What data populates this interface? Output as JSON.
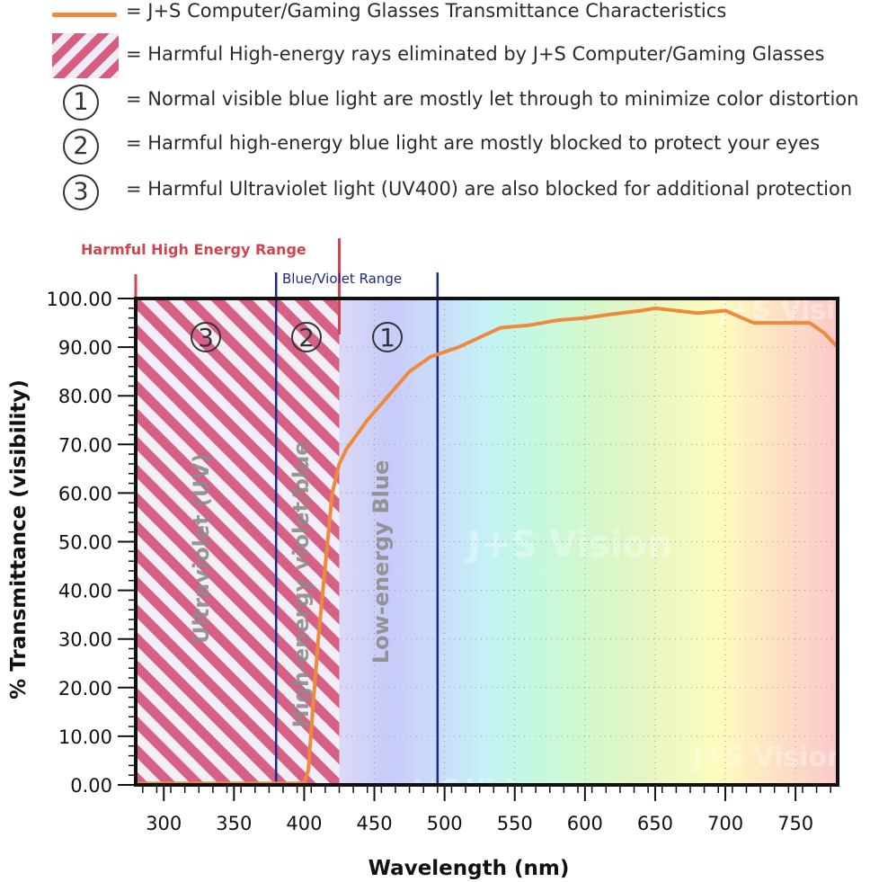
{
  "legend": {
    "items": [
      {
        "text": "= J+S Computer/Gaming Glasses Transmittance Characteristics",
        "swatch": "orange-line"
      },
      {
        "text": "= Harmful High-energy rays eliminated by J+S Computer/Gaming Glasses",
        "swatch": "hatch"
      },
      {
        "text": "= Normal visible blue light are mostly let through to minimize color distortion",
        "swatch": "circle",
        "symbol": "1"
      },
      {
        "text": "= Harmful high-energy blue light are mostly blocked to protect your eyes",
        "swatch": "circle",
        "symbol": "2"
      },
      {
        "text": "= Harmful Ultraviolet light (UV400) are also blocked for additional protection",
        "swatch": "circle",
        "symbol": "3"
      }
    ]
  },
  "colors": {
    "curve": "#ee8a3c",
    "hatch": "#d65d80",
    "harmful_range": "#d0454f",
    "blue_range": "#1a2a8a",
    "frame": "#111111"
  },
  "chart_data": {
    "type": "line",
    "title": "",
    "xlabel": "Wavelength (nm)",
    "ylabel": "% Transmittance (visibility)",
    "xlim": [
      280,
      780
    ],
    "ylim": [
      0,
      100
    ],
    "xticks": [
      300,
      350,
      400,
      450,
      500,
      550,
      600,
      650,
      700,
      750
    ],
    "yticks": [
      "0.00",
      "10.00",
      "20.00",
      "30.00",
      "40.00",
      "50.00",
      "60.00",
      "70.00",
      "80.00",
      "90.00",
      "100.00"
    ],
    "series": [
      {
        "x": [
          280,
          300,
          350,
          395,
          400,
          403,
          406,
          410,
          415,
          420,
          425,
          430,
          435,
          445,
          460,
          475,
          490,
          500,
          510,
          525,
          540,
          560,
          580,
          600,
          620,
          640,
          650,
          665,
          680,
          700,
          720,
          740,
          760,
          770,
          780
        ],
        "y": [
          0.3,
          0.3,
          0.3,
          0.3,
          0.5,
          3,
          15,
          30,
          45,
          60,
          66,
          69,
          71,
          75,
          80,
          85,
          88,
          89,
          90,
          92,
          94,
          94.5,
          95.5,
          96,
          96.8,
          97.5,
          98,
          97.5,
          97,
          97.5,
          95,
          95,
          95,
          93,
          90
        ]
      }
    ],
    "ranges": [
      {
        "label": "Harmful High Energy Range",
        "from": 280,
        "to": 425
      },
      {
        "label": "Blue/Violet Range",
        "from": 380,
        "to": 495
      }
    ],
    "hatched_region": {
      "from": 280,
      "to": 425
    },
    "regions": [
      {
        "symbol": "3",
        "label": "Ultraviolet (UV)",
        "x": 330
      },
      {
        "symbol": "2",
        "label": "High-energy violet/blue",
        "x": 405
      },
      {
        "symbol": "1",
        "label": "Low-energy Blue",
        "x": 460
      }
    ],
    "watermark": "J+S Vision",
    "grid": true
  }
}
